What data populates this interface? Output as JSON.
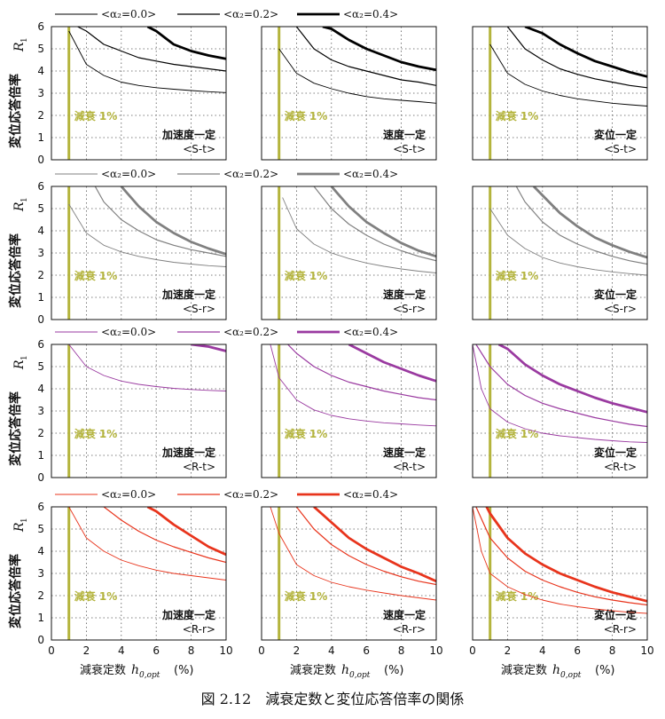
{
  "caption": "図 2.12　減衰定数と変位応答倍率の関係",
  "ylabel": "変位応答倍率",
  "ylabel_symbol": "R",
  "ylabel_sub": "1",
  "xlabel": "減衰定数",
  "xlabel_symbol": "h",
  "xlabel_sub": "0,opt",
  "xlabel_unit": "(%)",
  "x_ticks": [
    "0",
    "2",
    "4",
    "6",
    "8",
    "10"
  ],
  "y_ticks": [
    "0",
    "1",
    "2",
    "3",
    "4",
    "5",
    "6"
  ],
  "legend_entries": [
    "<α₂=0.0>",
    "<α₂=0.2>",
    "<α₂=0.4>"
  ],
  "marker_label": "減衰 1%",
  "panel_titles": [
    "加速度一定",
    "速度一定",
    "変位一定"
  ],
  "row_tags": [
    "<S-t>",
    "<S-r>",
    "<R-t>",
    "<R-r>"
  ],
  "colors": {
    "row1": "#000000",
    "row2": "#808080",
    "row3": "#9a3aa0",
    "row4": "#e8341c",
    "marker": "#b4b43c"
  },
  "chart_data": [
    {
      "type": "line",
      "row": 1,
      "col": 1,
      "title": "加速度一定",
      "tag": "<S-t>",
      "xlim": [
        0,
        10
      ],
      "ylim": [
        0,
        6
      ],
      "grid": true,
      "series": [
        {
          "name": "<α₂=0.0>",
          "x": [
            1,
            2,
            3,
            4,
            5,
            6,
            7,
            8,
            9,
            10
          ],
          "y": [
            5.8,
            4.3,
            3.8,
            3.5,
            3.35,
            3.25,
            3.18,
            3.12,
            3.07,
            3.03
          ]
        },
        {
          "name": "<α₂=0.2>",
          "x": [
            1.5,
            2,
            3,
            4,
            5,
            6,
            7,
            8,
            9,
            10
          ],
          "y": [
            6.0,
            5.8,
            5.2,
            4.9,
            4.6,
            4.45,
            4.3,
            4.2,
            4.1,
            4.0
          ]
        },
        {
          "name": "<α₂=0.4>",
          "x": [
            5.5,
            6,
            7,
            8,
            9,
            10
          ],
          "y": [
            6.0,
            5.8,
            5.2,
            4.9,
            4.7,
            4.55
          ]
        }
      ]
    },
    {
      "type": "line",
      "row": 1,
      "col": 2,
      "title": "速度一定",
      "tag": "<S-t>",
      "xlim": [
        0,
        10
      ],
      "ylim": [
        0,
        6
      ],
      "grid": true,
      "series": [
        {
          "name": "<α₂=0.0>",
          "x": [
            1,
            2,
            3,
            4,
            5,
            6,
            7,
            8,
            9,
            10
          ],
          "y": [
            5.0,
            3.9,
            3.45,
            3.2,
            3.0,
            2.85,
            2.75,
            2.68,
            2.62,
            2.55
          ]
        },
        {
          "name": "<α₂=0.2>",
          "x": [
            2,
            3,
            4,
            5,
            6,
            7,
            8,
            9,
            10
          ],
          "y": [
            6.0,
            5.0,
            4.5,
            4.2,
            4.0,
            3.8,
            3.6,
            3.5,
            3.35
          ]
        },
        {
          "name": "<α₂=0.4>",
          "x": [
            3.5,
            4,
            5,
            6,
            7,
            8,
            9,
            10
          ],
          "y": [
            6.0,
            5.9,
            5.4,
            5.0,
            4.7,
            4.4,
            4.2,
            4.05
          ]
        }
      ]
    },
    {
      "type": "line",
      "row": 1,
      "col": 3,
      "title": "変位一定",
      "tag": "<S-t>",
      "xlim": [
        0,
        10
      ],
      "ylim": [
        0,
        6
      ],
      "grid": true,
      "series": [
        {
          "name": "<α₂=0.0>",
          "x": [
            1,
            2,
            3,
            4,
            5,
            6,
            7,
            8,
            9,
            10
          ],
          "y": [
            5.2,
            3.9,
            3.4,
            3.1,
            2.9,
            2.75,
            2.65,
            2.55,
            2.48,
            2.42
          ]
        },
        {
          "name": "<α₂=0.2>",
          "x": [
            2,
            3,
            4,
            5,
            6,
            7,
            8,
            9,
            10
          ],
          "y": [
            6.0,
            5.0,
            4.5,
            4.1,
            3.85,
            3.65,
            3.5,
            3.35,
            3.25
          ]
        },
        {
          "name": "<α₂=0.4>",
          "x": [
            3,
            4,
            5,
            6,
            7,
            8,
            9,
            10
          ],
          "y": [
            6.0,
            5.7,
            5.2,
            4.8,
            4.45,
            4.2,
            3.95,
            3.75
          ]
        }
      ]
    },
    {
      "type": "line",
      "row": 2,
      "col": 1,
      "title": "加速度一定",
      "tag": "<S-r>",
      "xlim": [
        0,
        10
      ],
      "ylim": [
        0,
        6
      ],
      "grid": true,
      "series": [
        {
          "name": "<α₂=0.0>",
          "x": [
            1,
            2,
            3,
            4,
            5,
            6,
            7,
            8,
            9,
            10
          ],
          "y": [
            5.2,
            3.9,
            3.35,
            3.05,
            2.85,
            2.7,
            2.58,
            2.5,
            2.43,
            2.38
          ]
        },
        {
          "name": "<α₂=0.2>",
          "x": [
            2.5,
            3,
            4,
            5,
            6,
            7,
            8,
            9,
            10
          ],
          "y": [
            6.0,
            5.3,
            4.5,
            4.0,
            3.6,
            3.35,
            3.15,
            3.0,
            2.85
          ]
        },
        {
          "name": "<α₂=0.4>",
          "x": [
            4,
            5,
            6,
            7,
            8,
            9,
            10
          ],
          "y": [
            6.0,
            5.1,
            4.4,
            3.9,
            3.5,
            3.2,
            2.95
          ]
        }
      ]
    },
    {
      "type": "line",
      "row": 2,
      "col": 2,
      "title": "速度一定",
      "tag": "<S-r>",
      "xlim": [
        0,
        10
      ],
      "ylim": [
        0,
        6
      ],
      "grid": true,
      "series": [
        {
          "name": "<α₂=0.0>",
          "x": [
            1.2,
            2,
            3,
            4,
            5,
            6,
            7,
            8,
            9,
            10
          ],
          "y": [
            5.5,
            4.1,
            3.4,
            3.0,
            2.75,
            2.55,
            2.4,
            2.28,
            2.18,
            2.1
          ]
        },
        {
          "name": "<α₂=0.2>",
          "x": [
            3,
            4,
            5,
            6,
            7,
            8,
            9,
            10
          ],
          "y": [
            6.0,
            5.0,
            4.3,
            3.8,
            3.4,
            3.1,
            2.85,
            2.65
          ]
        },
        {
          "name": "<α₂=0.4>",
          "x": [
            4,
            5,
            6,
            7,
            8,
            9,
            10
          ],
          "y": [
            6.0,
            5.1,
            4.4,
            3.9,
            3.45,
            3.1,
            2.85
          ]
        }
      ]
    },
    {
      "type": "line",
      "row": 2,
      "col": 3,
      "title": "変位一定",
      "tag": "<S-r>",
      "xlim": [
        0,
        10
      ],
      "ylim": [
        0,
        6
      ],
      "grid": true,
      "series": [
        {
          "name": "<α₂=0.0>",
          "x": [
            1,
            2,
            3,
            4,
            5,
            6,
            7,
            8,
            9,
            10
          ],
          "y": [
            5.0,
            3.8,
            3.2,
            2.8,
            2.55,
            2.38,
            2.25,
            2.15,
            2.07,
            2.0
          ]
        },
        {
          "name": "<α₂=0.2>",
          "x": [
            2.5,
            3,
            4,
            5,
            6,
            7,
            8,
            9,
            10
          ],
          "y": [
            6.0,
            5.3,
            4.4,
            3.8,
            3.4,
            3.1,
            2.85,
            2.65,
            2.5
          ]
        },
        {
          "name": "<α₂=0.4>",
          "x": [
            3.5,
            4,
            5,
            6,
            7,
            8,
            9,
            10
          ],
          "y": [
            6.0,
            5.6,
            4.8,
            4.2,
            3.7,
            3.35,
            3.05,
            2.8
          ]
        }
      ]
    },
    {
      "type": "line",
      "row": 3,
      "col": 1,
      "title": "加速度一定",
      "tag": "<R-t>",
      "xlim": [
        0,
        10
      ],
      "ylim": [
        0,
        6
      ],
      "grid": true,
      "series": [
        {
          "name": "<α₂=0.0>",
          "x": [
            1,
            2,
            3,
            4,
            5,
            6,
            7,
            8,
            9,
            10
          ],
          "y": [
            6.0,
            5.0,
            4.6,
            4.35,
            4.2,
            4.1,
            4.02,
            3.97,
            3.93,
            3.9
          ]
        },
        {
          "name": "<α₂=0.2>",
          "x": [],
          "y": []
        },
        {
          "name": "<α₂=0.4>",
          "x": [
            8,
            9,
            10
          ],
          "y": [
            6.0,
            5.9,
            5.7
          ]
        }
      ]
    },
    {
      "type": "line",
      "row": 3,
      "col": 2,
      "title": "速度一定",
      "tag": "<R-t>",
      "xlim": [
        0,
        10
      ],
      "ylim": [
        0,
        6
      ],
      "grid": true,
      "series": [
        {
          "name": "<α₂=0.0>",
          "x": [
            0.5,
            1,
            2,
            3,
            4,
            5,
            6,
            7,
            8,
            9,
            10
          ],
          "y": [
            6.0,
            4.5,
            3.5,
            3.05,
            2.8,
            2.65,
            2.55,
            2.47,
            2.42,
            2.37,
            2.33
          ]
        },
        {
          "name": "<α₂=0.2>",
          "x": [
            1.5,
            2,
            3,
            4,
            5,
            6,
            7,
            8,
            9,
            10
          ],
          "y": [
            6.0,
            5.6,
            5.0,
            4.6,
            4.3,
            4.1,
            3.9,
            3.75,
            3.6,
            3.5
          ]
        },
        {
          "name": "<α₂=0.4>",
          "x": [
            5,
            6,
            7,
            8,
            9,
            10
          ],
          "y": [
            6.0,
            5.6,
            5.2,
            4.9,
            4.6,
            4.35
          ]
        }
      ]
    },
    {
      "type": "line",
      "row": 3,
      "col": 3,
      "title": "変位一定",
      "tag": "<R-t>",
      "xlim": [
        0,
        10
      ],
      "ylim": [
        0,
        6
      ],
      "grid": true,
      "series": [
        {
          "name": "<α₂=0.0>",
          "x": [
            0,
            0.5,
            1,
            2,
            3,
            4,
            5,
            6,
            7,
            8,
            9,
            10
          ],
          "y": [
            6.0,
            4.0,
            3.1,
            2.5,
            2.2,
            2.0,
            1.88,
            1.8,
            1.72,
            1.66,
            1.61,
            1.58
          ]
        },
        {
          "name": "<α₂=0.2>",
          "x": [
            0.2,
            1,
            2,
            3,
            4,
            5,
            6,
            7,
            8,
            9,
            10
          ],
          "y": [
            6.0,
            5.0,
            4.2,
            3.7,
            3.35,
            3.1,
            2.9,
            2.7,
            2.55,
            2.4,
            2.3
          ]
        },
        {
          "name": "<α₂=0.4>",
          "x": [
            1.5,
            2,
            3,
            4,
            5,
            6,
            7,
            8,
            9,
            10
          ],
          "y": [
            6.0,
            5.8,
            5.1,
            4.6,
            4.2,
            3.9,
            3.6,
            3.35,
            3.15,
            2.95
          ]
        }
      ]
    },
    {
      "type": "line",
      "row": 4,
      "col": 1,
      "title": "加速度一定",
      "tag": "<R-r>",
      "xlim": [
        0,
        10
      ],
      "ylim": [
        0,
        6
      ],
      "grid": true,
      "series": [
        {
          "name": "<α₂=0.0>",
          "x": [
            1,
            2,
            3,
            4,
            5,
            6,
            7,
            8,
            9,
            10
          ],
          "y": [
            6.0,
            4.6,
            4.0,
            3.6,
            3.35,
            3.15,
            3.0,
            2.9,
            2.8,
            2.7
          ]
        },
        {
          "name": "<α₂=0.2>",
          "x": [
            3,
            4,
            5,
            6,
            7,
            8,
            9,
            10
          ],
          "y": [
            6.0,
            5.4,
            4.9,
            4.5,
            4.2,
            3.95,
            3.7,
            3.5
          ]
        },
        {
          "name": "<α₂=0.4>",
          "x": [
            5.5,
            6,
            7,
            8,
            9,
            10
          ],
          "y": [
            6.0,
            5.8,
            5.2,
            4.7,
            4.2,
            3.85
          ]
        }
      ]
    },
    {
      "type": "line",
      "row": 4,
      "col": 2,
      "title": "速度一定",
      "tag": "<R-r>",
      "xlim": [
        0,
        10
      ],
      "ylim": [
        0,
        6
      ],
      "grid": true,
      "series": [
        {
          "name": "<α₂=0.0>",
          "x": [
            0.5,
            1,
            2,
            3,
            4,
            5,
            6,
            7,
            8,
            9,
            10
          ],
          "y": [
            6.0,
            4.8,
            3.4,
            2.9,
            2.6,
            2.4,
            2.25,
            2.12,
            2.0,
            1.9,
            1.8
          ]
        },
        {
          "name": "<α₂=0.2>",
          "x": [
            2,
            3,
            4,
            5,
            6,
            7,
            8,
            9,
            10
          ],
          "y": [
            6.0,
            5.0,
            4.3,
            3.8,
            3.4,
            3.1,
            2.85,
            2.65,
            2.5
          ]
        },
        {
          "name": "<α₂=0.4>",
          "x": [
            3,
            4,
            5,
            6,
            7,
            8,
            9,
            10
          ],
          "y": [
            6.0,
            5.3,
            4.6,
            4.1,
            3.7,
            3.3,
            3.0,
            2.65
          ]
        }
      ]
    },
    {
      "type": "line",
      "row": 4,
      "col": 3,
      "title": "変位一定",
      "tag": "<R-r>",
      "xlim": [
        0,
        10
      ],
      "ylim": [
        0,
        6
      ],
      "grid": true,
      "series": [
        {
          "name": "<α₂=0.0>",
          "x": [
            0,
            0.5,
            1,
            2,
            3,
            4,
            5,
            6,
            7,
            8,
            9,
            10
          ],
          "y": [
            6.0,
            4.0,
            3.0,
            2.4,
            2.05,
            1.8,
            1.62,
            1.5,
            1.4,
            1.32,
            1.25,
            1.2
          ]
        },
        {
          "name": "<α₂=0.2>",
          "x": [
            0.2,
            1,
            2,
            3,
            4,
            5,
            6,
            7,
            8,
            9,
            10
          ],
          "y": [
            6.0,
            4.6,
            3.7,
            3.1,
            2.7,
            2.4,
            2.15,
            1.95,
            1.8,
            1.68,
            1.58
          ]
        },
        {
          "name": "<α₂=0.4>",
          "x": [
            0.8,
            1,
            2,
            3,
            4,
            5,
            6,
            7,
            8,
            9,
            10
          ],
          "y": [
            6.0,
            5.7,
            4.6,
            3.9,
            3.4,
            3.0,
            2.7,
            2.4,
            2.15,
            1.95,
            1.75
          ]
        }
      ]
    }
  ]
}
